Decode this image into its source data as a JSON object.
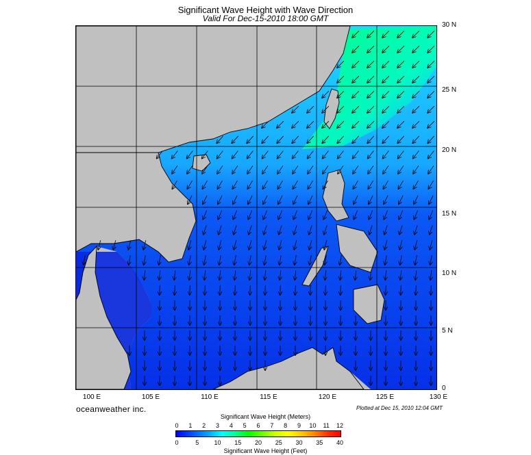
{
  "title": "Significant Wave Height with Wave Direction",
  "subtitle": "Valid For Dec-15-2010 18:00 GMT",
  "brand": "oceanweather inc.",
  "plotted": "Plotted at Dec 15, 2010 12:04 GMT",
  "lat_labels": [
    "30 N",
    "25 N",
    "20 N",
    "15 N",
    "10 N",
    "5 N",
    "0"
  ],
  "lon_labels": [
    "100 E",
    "105 E",
    "110 E",
    "115 E",
    "120 E",
    "125 E",
    "130 E"
  ],
  "legend": {
    "meters_title": "Significant Wave Height (Meters)",
    "feet_title": "Significant Wave Height (Feet)",
    "meters_ticks": [
      "0",
      "1",
      "2",
      "3",
      "4",
      "5",
      "6",
      "7",
      "8",
      "9",
      "10",
      "11",
      "12"
    ],
    "feet_ticks": [
      "0",
      "5",
      "10",
      "15",
      "20",
      "25",
      "30",
      "35",
      "40"
    ]
  },
  "colors": {
    "land": "#c0c0c0",
    "sea_low": "#0a3cf0",
    "sea_mid": "#00c8ff",
    "sea_high": "#00ff66",
    "coast": "#000000",
    "grid": "#000000"
  }
}
